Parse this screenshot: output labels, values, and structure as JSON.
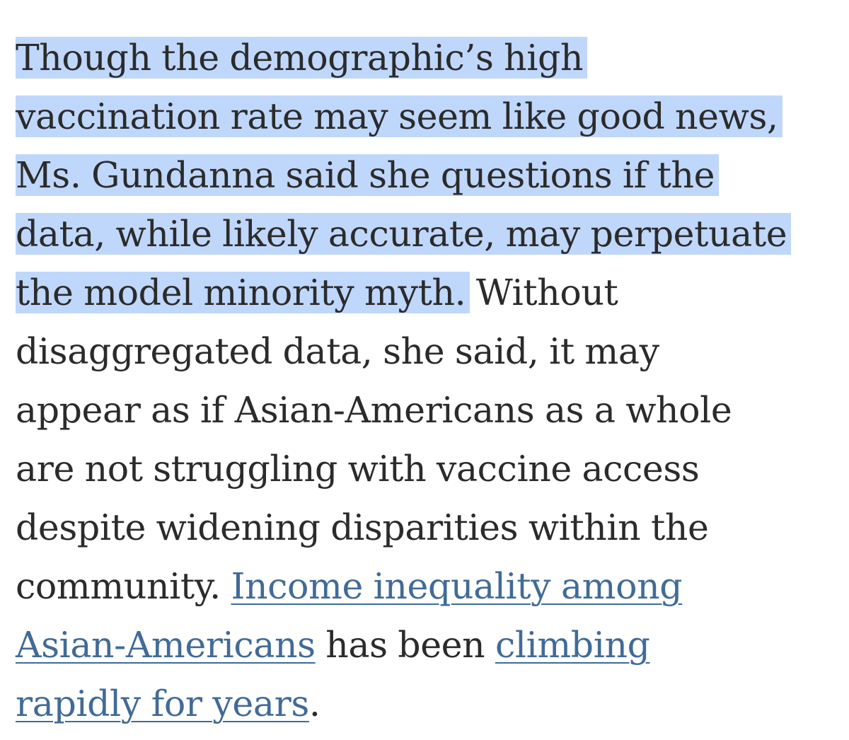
{
  "highlighted_lines": [
    "Though the demographic’s high",
    "vaccination rate may seem like good news,",
    "Ms. Gundanna said she questions if the",
    "data, while likely accurate, may perpetuate",
    "the model minority myth."
  ],
  "line5_rest": " Without",
  "lines": [
    "disaggregated data, she said, it may",
    "appear as if Asian-Americans as a whole",
    "are not struggling with vaccine access",
    "despite widening disparities within the"
  ],
  "line10_text": "community. ",
  "link1_part1": "Income inequality among",
  "link1_part2": "Asian-Americans",
  "line11_mid": " has been ",
  "link2_part1": "climbing",
  "link2_part2": "rapidly for years",
  "end_period": ".",
  "colors": {
    "highlight": "#bfd7fb",
    "text": "#2b2b2b",
    "link": "#416b98"
  }
}
